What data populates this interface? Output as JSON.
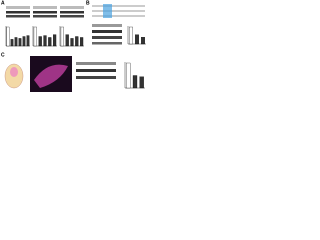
{
  "panels": {
    "a": {
      "label": "A",
      "charts": [
        {
          "values": [
            1,
            0.35,
            0.45,
            0.4,
            0.5,
            0.55
          ]
        },
        {
          "values": [
            1,
            0.5,
            0.55,
            0.45,
            0.6
          ]
        },
        {
          "values": [
            1,
            0.6,
            0.4,
            0.5,
            0.45
          ]
        }
      ]
    },
    "b": {
      "label": "B",
      "chart": {
        "values": [
          1,
          0.55,
          0.4
        ]
      }
    },
    "c": {
      "label": "C",
      "chart": {
        "values": [
          1,
          0.5,
          0.45
        ]
      }
    }
  }
}
